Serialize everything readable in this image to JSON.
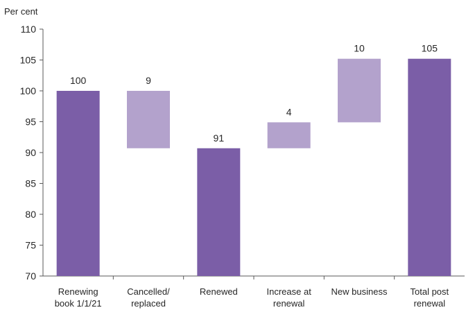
{
  "chart_data": {
    "type": "bar",
    "subtype": "waterfall",
    "ylabel": "Per cent",
    "ylim": [
      70,
      110
    ],
    "yticks": [
      70,
      75,
      80,
      85,
      90,
      95,
      100,
      105,
      110
    ],
    "grid": false,
    "categories": [
      [
        "Renewing",
        "book 1/1/21"
      ],
      [
        "Cancelled/",
        "replaced"
      ],
      [
        "Renewed"
      ],
      [
        "Increase at",
        "renewal"
      ],
      [
        "New business"
      ],
      [
        "Total post",
        "renewal"
      ]
    ],
    "bars": [
      {
        "label": "100",
        "start": 70,
        "end": 100,
        "kind": "total"
      },
      {
        "label": "9",
        "start": 90.7,
        "end": 100,
        "kind": "change"
      },
      {
        "label": "91",
        "start": 70,
        "end": 90.7,
        "kind": "total"
      },
      {
        "label": "4",
        "start": 90.7,
        "end": 94.9,
        "kind": "change"
      },
      {
        "label": "10",
        "start": 94.9,
        "end": 105.2,
        "kind": "change"
      },
      {
        "label": "105",
        "start": 70,
        "end": 105.2,
        "kind": "total"
      }
    ],
    "colors": {
      "total": "#7b5ea7",
      "change": "#b3a2cc",
      "axis": "#595959",
      "text": "#262626"
    }
  }
}
